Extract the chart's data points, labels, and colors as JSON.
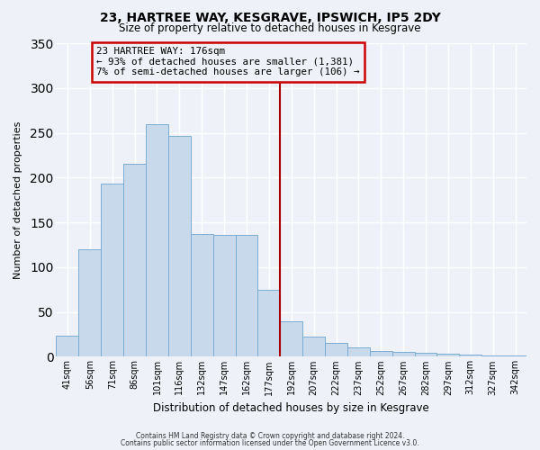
{
  "title": "23, HARTREE WAY, KESGRAVE, IPSWICH, IP5 2DY",
  "subtitle": "Size of property relative to detached houses in Kesgrave",
  "xlabel": "Distribution of detached houses by size in Kesgrave",
  "ylabel": "Number of detached properties",
  "bar_labels": [
    "41sqm",
    "56sqm",
    "71sqm",
    "86sqm",
    "101sqm",
    "116sqm",
    "132sqm",
    "147sqm",
    "162sqm",
    "177sqm",
    "192sqm",
    "207sqm",
    "222sqm",
    "237sqm",
    "252sqm",
    "267sqm",
    "282sqm",
    "297sqm",
    "312sqm",
    "327sqm",
    "342sqm"
  ],
  "bar_values": [
    23,
    120,
    193,
    215,
    260,
    247,
    137,
    136,
    136,
    75,
    40,
    22,
    15,
    10,
    6,
    5,
    4,
    3,
    2,
    1,
    1
  ],
  "bar_color": "#c9d9ec",
  "bar_edge_color": "#7aadd4",
  "vline_x_idx": 9,
  "vline_color": "#aa0000",
  "annotation_title": "23 HARTREE WAY: 176sqm",
  "annotation_line1": "← 93% of detached houses are smaller (1,381)",
  "annotation_line2": "7% of semi-detached houses are larger (106) →",
  "annotation_box_color": "#cc0000",
  "ylim": [
    0,
    350
  ],
  "yticks": [
    0,
    50,
    100,
    150,
    200,
    250,
    300,
    350
  ],
  "footer1": "Contains HM Land Registry data © Crown copyright and database right 2024.",
  "footer2": "Contains public sector information licensed under the Open Government Licence v3.0.",
  "bg_color": "#eef2f8",
  "grid_color": "#ffffff"
}
